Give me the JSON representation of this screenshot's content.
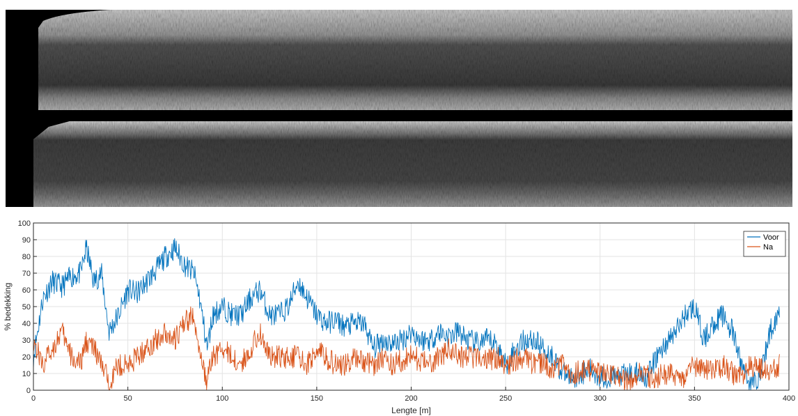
{
  "chart_data": {
    "type": "line",
    "xlabel": "Lengte [m]",
    "ylabel": "% bedekking",
    "xlim": [
      0,
      400
    ],
    "ylim": [
      0,
      100
    ],
    "xticks": [
      0,
      50,
      100,
      150,
      200,
      250,
      300,
      350,
      400
    ],
    "yticks": [
      0,
      10,
      20,
      30,
      40,
      50,
      60,
      70,
      80,
      90,
      100
    ],
    "grid": true,
    "legend_position": "top-right",
    "x": [
      0,
      5,
      10,
      15,
      20,
      25,
      28,
      32,
      36,
      40,
      45,
      50,
      55,
      60,
      65,
      70,
      75,
      80,
      85,
      88,
      92,
      95,
      100,
      105,
      110,
      115,
      120,
      125,
      130,
      135,
      140,
      145,
      150,
      155,
      160,
      165,
      170,
      175,
      180,
      185,
      190,
      195,
      200,
      205,
      210,
      215,
      220,
      225,
      230,
      235,
      240,
      245,
      250,
      255,
      260,
      265,
      270,
      275,
      280,
      285,
      290,
      295,
      300,
      305,
      310,
      315,
      320,
      325,
      330,
      335,
      340,
      345,
      350,
      355,
      360,
      365,
      370,
      375,
      380,
      385,
      390,
      395
    ],
    "series": [
      {
        "name": "Voor",
        "color": "#0072BD",
        "values": [
          20,
          55,
          65,
          62,
          68,
          70,
          85,
          65,
          70,
          35,
          45,
          60,
          58,
          65,
          72,
          80,
          85,
          75,
          70,
          55,
          25,
          45,
          50,
          45,
          45,
          55,
          60,
          45,
          45,
          50,
          65,
          55,
          45,
          40,
          42,
          38,
          40,
          40,
          25,
          30,
          28,
          30,
          35,
          30,
          30,
          35,
          32,
          35,
          30,
          28,
          30,
          28,
          15,
          25,
          30,
          30,
          25,
          20,
          10,
          8,
          10,
          12,
          8,
          8,
          8,
          10,
          10,
          8,
          20,
          28,
          35,
          45,
          50,
          30,
          40,
          45,
          35,
          15,
          3,
          10,
          35,
          48
        ]
      },
      {
        "name": "Na",
        "color": "#D95319",
        "values": [
          30,
          15,
          25,
          35,
          20,
          15,
          30,
          25,
          15,
          5,
          15,
          15,
          20,
          25,
          30,
          35,
          30,
          40,
          45,
          20,
          5,
          20,
          25,
          20,
          15,
          25,
          35,
          20,
          20,
          20,
          20,
          15,
          25,
          20,
          15,
          15,
          20,
          18,
          15,
          20,
          15,
          18,
          20,
          18,
          15,
          20,
          25,
          20,
          20,
          20,
          18,
          20,
          15,
          18,
          20,
          15,
          18,
          12,
          15,
          10,
          12,
          12,
          10,
          8,
          8,
          5,
          10,
          8,
          8,
          10,
          8,
          8,
          15,
          12,
          12,
          15,
          10,
          8,
          15,
          12,
          12,
          15
        ]
      }
    ]
  },
  "photos": {
    "background": "#000000"
  }
}
